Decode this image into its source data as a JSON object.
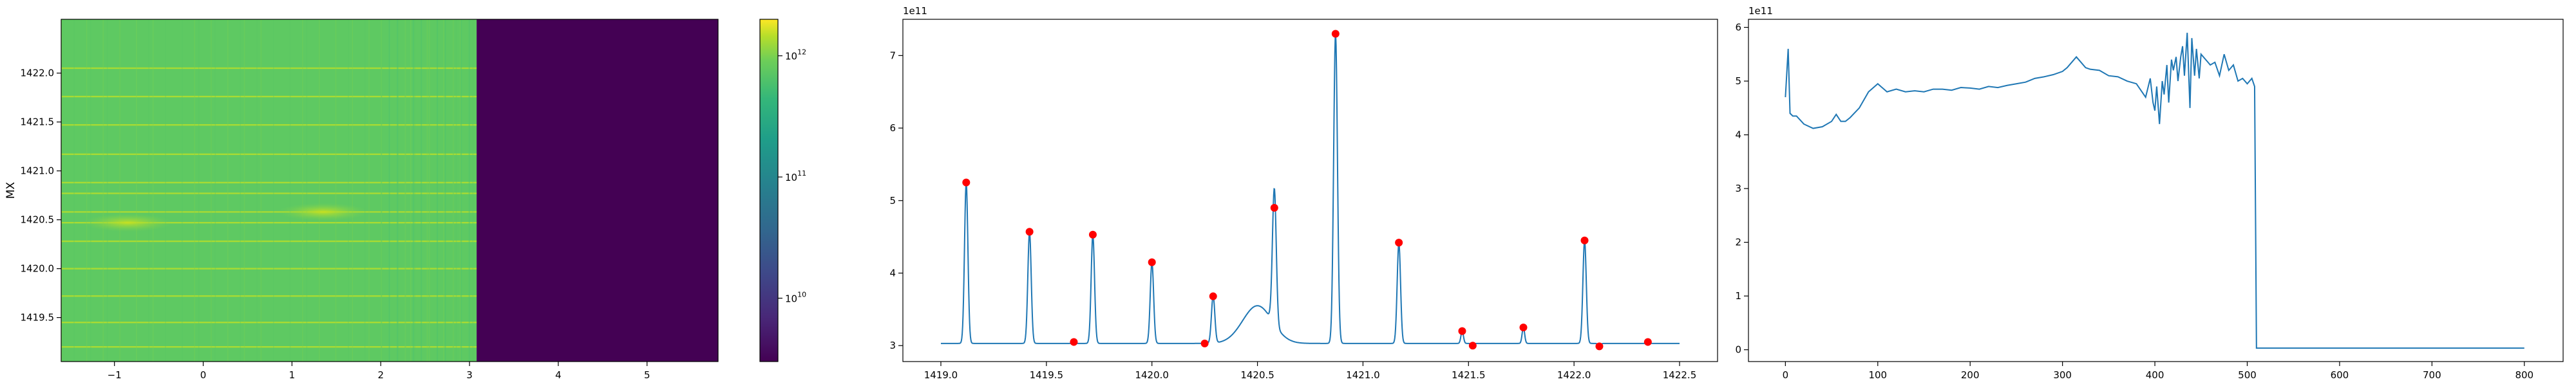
{
  "chart_data": [
    {
      "type": "heatmap",
      "xlim": [
        -1.6,
        5.8
      ],
      "ylim": [
        1419.05,
        1422.55
      ],
      "x_ticks": [
        -1,
        0,
        1,
        2,
        3,
        4,
        5
      ],
      "y_ticks": [
        1419.5,
        1420.0,
        1420.5,
        1421.0,
        1421.5,
        1422.0
      ],
      "x_tick_labels": [
        "−1",
        "0",
        "1",
        "2",
        "3",
        "4",
        "5"
      ],
      "y_tick_labels": [
        "1419.5",
        "1420.0",
        "1420.5",
        "1421.0",
        "1421.5",
        "1422.0"
      ],
      "ylabel": "MX",
      "data_end_x": 3.08,
      "bright_rows_y": [
        1419.2,
        1419.45,
        1419.72,
        1420.0,
        1420.28,
        1420.47,
        1420.58,
        1420.77,
        1420.88,
        1421.17,
        1421.47,
        1421.76,
        1422.05
      ],
      "hotspots": [
        {
          "x": -0.85,
          "y": 1420.47
        },
        {
          "x": 1.35,
          "y": 1420.58
        }
      ],
      "colorbar": {
        "scale": "log",
        "ticks": [
          10000000000.0,
          100000000000.0,
          1000000000000.0
        ],
        "tick_bases": [
          "10",
          "10",
          "10"
        ],
        "tick_exponents": [
          "10",
          "11",
          "12"
        ],
        "range": [
          3000000000.0,
          2000000000000.0
        ]
      },
      "colors": {
        "low": "#440154",
        "mid": "#5ec962",
        "high": "#fde725"
      }
    },
    {
      "type": "line",
      "xlim": [
        1418.82,
        1422.68
      ],
      "ylim": [
        2.78,
        7.5
      ],
      "x_ticks": [
        1419.0,
        1419.5,
        1420.0,
        1420.5,
        1421.0,
        1421.5,
        1422.0,
        1422.5
      ],
      "x_tick_labels": [
        "1419.0",
        "1419.5",
        "1420.0",
        "1420.5",
        "1421.0",
        "1421.5",
        "1422.0",
        "1422.5"
      ],
      "y_ticks": [
        3,
        4,
        5,
        6,
        7
      ],
      "y_tick_labels": [
        "3",
        "4",
        "5",
        "6",
        "7"
      ],
      "offset_label": "1e11",
      "baseline": 3.03,
      "x_start": 1419.0,
      "x_end": 1422.5,
      "line_peaks": [
        {
          "x": 1419.12,
          "y": 5.25,
          "w": 0.008
        },
        {
          "x": 1419.42,
          "y": 4.57,
          "w": 0.008
        },
        {
          "x": 1419.63,
          "y": 3.05,
          "w": 0.006
        },
        {
          "x": 1419.72,
          "y": 4.53,
          "w": 0.008
        },
        {
          "x": 1420.0,
          "y": 4.15,
          "w": 0.008
        },
        {
          "x": 1420.25,
          "y": 3.03,
          "w": 0.006
        },
        {
          "x": 1420.29,
          "y": 3.68,
          "w": 0.008
        },
        {
          "x": 1420.58,
          "y": 4.9,
          "w": 0.009
        },
        {
          "x": 1420.87,
          "y": 7.3,
          "w": 0.009
        },
        {
          "x": 1421.17,
          "y": 4.42,
          "w": 0.008
        },
        {
          "x": 1421.47,
          "y": 3.2,
          "w": 0.006
        },
        {
          "x": 1421.52,
          "y": 3.0,
          "w": 0.006
        },
        {
          "x": 1421.76,
          "y": 3.25,
          "w": 0.006
        },
        {
          "x": 1422.05,
          "y": 4.45,
          "w": 0.008
        },
        {
          "x": 1422.12,
          "y": 2.99,
          "w": 0.006
        },
        {
          "x": 1422.35,
          "y": 3.05,
          "w": 0.006
        }
      ],
      "bump": {
        "x": 1420.5,
        "y": 3.55,
        "w": 0.07
      },
      "markers": [
        {
          "x": 1419.12,
          "y": 5.25
        },
        {
          "x": 1419.42,
          "y": 4.57
        },
        {
          "x": 1419.63,
          "y": 3.05
        },
        {
          "x": 1419.72,
          "y": 4.53
        },
        {
          "x": 1420.0,
          "y": 4.15
        },
        {
          "x": 1420.25,
          "y": 3.03
        },
        {
          "x": 1420.29,
          "y": 3.68
        },
        {
          "x": 1420.58,
          "y": 4.9
        },
        {
          "x": 1420.87,
          "y": 7.3
        },
        {
          "x": 1421.17,
          "y": 4.42
        },
        {
          "x": 1421.47,
          "y": 3.2
        },
        {
          "x": 1421.52,
          "y": 3.0
        },
        {
          "x": 1421.76,
          "y": 3.25
        },
        {
          "x": 1422.05,
          "y": 4.45
        },
        {
          "x": 1422.12,
          "y": 2.99
        },
        {
          "x": 1422.35,
          "y": 3.05
        }
      ],
      "colors": {
        "line": "#1f77b4",
        "marker": "#ff0000"
      }
    },
    {
      "type": "line",
      "xlim": [
        -40,
        842
      ],
      "ylim": [
        -0.22,
        6.15
      ],
      "x_ticks": [
        0,
        100,
        200,
        300,
        400,
        500,
        600,
        700,
        800
      ],
      "x_tick_labels": [
        "0",
        "100",
        "200",
        "300",
        "400",
        "500",
        "600",
        "700",
        "800"
      ],
      "y_ticks": [
        0,
        1,
        2,
        3,
        4,
        5,
        6
      ],
      "y_tick_labels": [
        "0",
        "1",
        "2",
        "3",
        "4",
        "5",
        "6"
      ],
      "offset_label": "1e11",
      "series": [
        {
          "x": [
            0,
            3,
            5,
            8,
            12,
            20,
            30,
            40,
            50,
            55,
            60,
            65,
            70,
            80,
            90,
            100,
            110,
            120,
            130,
            140,
            150,
            160,
            170,
            180,
            190,
            200,
            210,
            220,
            230,
            240,
            250,
            260,
            270,
            280,
            290,
            300,
            305,
            310,
            315,
            320,
            325,
            330,
            340,
            350,
            360,
            370,
            380,
            390,
            395,
            398,
            400,
            402,
            405,
            408,
            410,
            413,
            415,
            418,
            420,
            423,
            425,
            428,
            430,
            432,
            435,
            438,
            440,
            443,
            445,
            448,
            450,
            455,
            460,
            465,
            470,
            475,
            480,
            485,
            490,
            495,
            500,
            505,
            508,
            510,
            513,
            520,
            550,
            600,
            650,
            700,
            750,
            800
          ],
          "y": [
            4.7,
            5.6,
            4.4,
            4.35,
            4.35,
            4.2,
            4.12,
            4.15,
            4.25,
            4.38,
            4.25,
            4.25,
            4.32,
            4.5,
            4.8,
            4.95,
            4.8,
            4.85,
            4.8,
            4.82,
            4.8,
            4.85,
            4.85,
            4.83,
            4.88,
            4.87,
            4.85,
            4.9,
            4.88,
            4.92,
            4.95,
            4.98,
            5.05,
            5.08,
            5.12,
            5.18,
            5.25,
            5.35,
            5.45,
            5.35,
            5.25,
            5.22,
            5.2,
            5.1,
            5.08,
            5.0,
            4.95,
            4.7,
            5.05,
            4.6,
            4.45,
            4.9,
            4.2,
            5.0,
            4.75,
            5.3,
            4.6,
            5.4,
            5.2,
            5.45,
            5.0,
            5.45,
            5.65,
            5.1,
            5.9,
            4.5,
            5.8,
            5.1,
            5.6,
            5.05,
            5.5,
            5.4,
            5.3,
            5.35,
            5.1,
            5.5,
            5.2,
            5.3,
            5.0,
            5.05,
            4.95,
            5.05,
            4.9,
            0.03,
            0.03,
            0.03,
            0.03,
            0.03,
            0.03,
            0.03,
            0.03,
            0.03
          ]
        }
      ],
      "colors": {
        "line": "#1f77b4"
      }
    }
  ]
}
